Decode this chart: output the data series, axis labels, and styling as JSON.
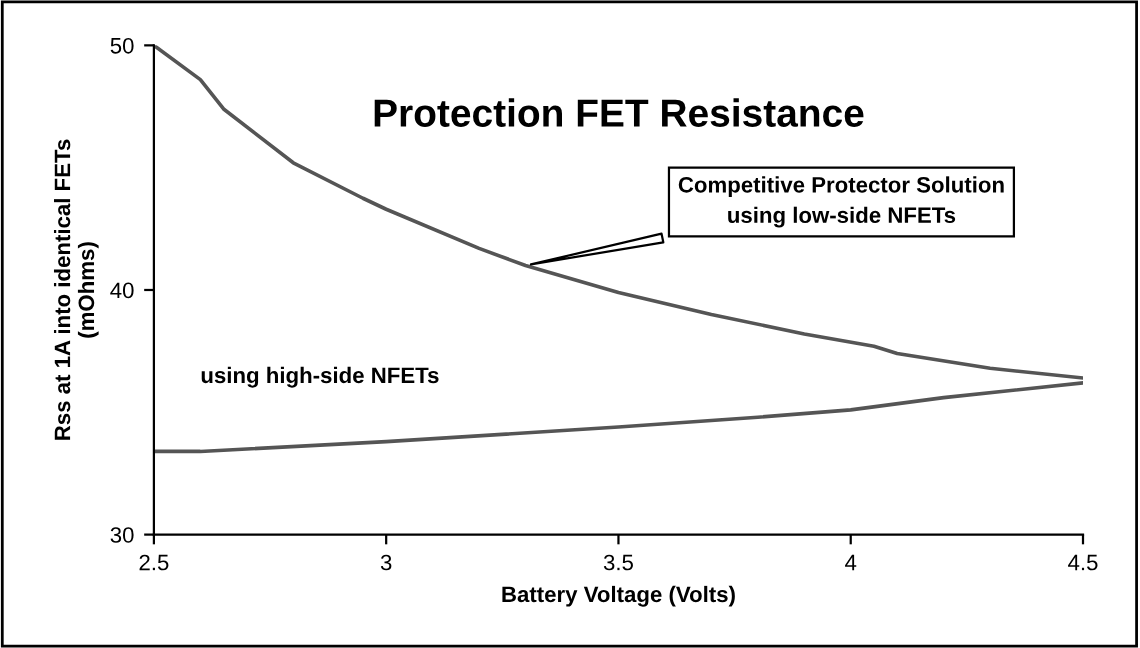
{
  "chart_data": {
    "type": "line",
    "title": "Protection FET Resistance",
    "xlabel": "Battery Voltage (Volts)",
    "ylabel": "Rss at 1A into identical FETs\n(mOhms)",
    "series": [
      {
        "color": "#555555",
        "x": [
          2.5,
          2.6,
          2.65,
          2.8,
          2.95,
          3.0,
          3.2,
          3.3,
          3.5,
          3.7,
          3.9,
          4.05,
          4.1,
          4.3,
          4.5
        ],
        "values": [
          50,
          48.6,
          47.4,
          45.2,
          43.75,
          43.3,
          41.7,
          41.0,
          39.9,
          39.0,
          38.2,
          37.7,
          37.4,
          36.8,
          36.4
        ]
      },
      {
        "color": "#555555",
        "x": [
          2.5,
          2.6,
          3.0,
          3.5,
          3.8,
          4.0,
          4.2,
          4.5
        ],
        "values": [
          33.4,
          33.4,
          33.8,
          34.4,
          34.8,
          35.1,
          35.6,
          36.2
        ]
      }
    ],
    "annotations": [
      {
        "text": "Competitive Protector Solution\nusing low-side NFETs",
        "x": 3.3,
        "y": 41.0
      },
      "using high-side NFETs"
    ],
    "xlim": [
      2.5,
      4.5
    ],
    "xticks": [
      2.5,
      3,
      3.5,
      4,
      4.5
    ],
    "ylim": [
      30,
      50
    ],
    "yticks": [
      30,
      40,
      50
    ],
    "grid": false,
    "legend": false
  }
}
